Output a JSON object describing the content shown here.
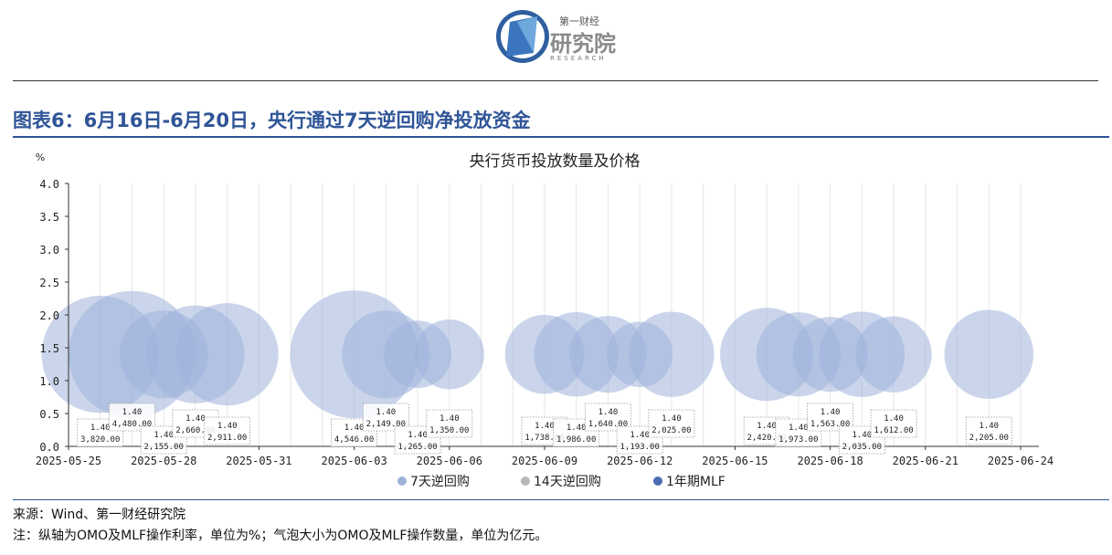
{
  "brand": {
    "cn_small": "第一财经",
    "cn_big": "研究院",
    "en": "RESEARCH"
  },
  "figure_title": "图表6：6月16日-6月20日，央行通过7天逆回购净投放资金",
  "chart_data": {
    "type": "bubble",
    "title": "央行货币投放数量及价格",
    "ylabel": "%",
    "ylim": [
      0,
      4
    ],
    "yticks": [
      "0.0",
      "0.5",
      "1.0",
      "1.5",
      "2.0",
      "2.5",
      "3.0",
      "3.5",
      "4.0"
    ],
    "xlim": [
      "2025-05-25",
      "2025-06-24"
    ],
    "xticks": [
      "2025-05-25",
      "2025-05-28",
      "2025-05-31",
      "2025-06-03",
      "2025-06-06",
      "2025-06-09",
      "2025-06-12",
      "2025-06-15",
      "2025-06-18",
      "2025-06-21",
      "2025-06-24"
    ],
    "grid": "vertical",
    "legend_position": "bottom",
    "series": [
      {
        "name": "7天逆回购",
        "color": "#9fb2da",
        "points": [
          {
            "date": "2025-05-26",
            "rate": 1.4,
            "amount": "3,820.00",
            "amount_num": 3820
          },
          {
            "date": "2025-05-27",
            "rate": 1.4,
            "amount": "4,480.00",
            "amount_num": 4480
          },
          {
            "date": "2025-05-28",
            "rate": 1.4,
            "amount": "2,155.00",
            "amount_num": 2155
          },
          {
            "date": "2025-05-29",
            "rate": 1.4,
            "amount": "2,660.00",
            "amount_num": 2660
          },
          {
            "date": "2025-05-30",
            "rate": 1.4,
            "amount": "2,911.00",
            "amount_num": 2911
          },
          {
            "date": "2025-06-03",
            "rate": 1.4,
            "amount": "4,546.00",
            "amount_num": 4546
          },
          {
            "date": "2025-06-04",
            "rate": 1.4,
            "amount": "2,149.00",
            "amount_num": 2149
          },
          {
            "date": "2025-06-05",
            "rate": 1.4,
            "amount": "1,265.00",
            "amount_num": 1265
          },
          {
            "date": "2025-06-06",
            "rate": 1.4,
            "amount": "1,350.00",
            "amount_num": 1350
          },
          {
            "date": "2025-06-09",
            "rate": 1.4,
            "amount": "1,738.00",
            "amount_num": 1738
          },
          {
            "date": "2025-06-10",
            "rate": 1.4,
            "amount": "1,986.00",
            "amount_num": 1986
          },
          {
            "date": "2025-06-11",
            "rate": 1.4,
            "amount": "1,640.00",
            "amount_num": 1640
          },
          {
            "date": "2025-06-12",
            "rate": 1.4,
            "amount": "1,193.00",
            "amount_num": 1193
          },
          {
            "date": "2025-06-13",
            "rate": 1.4,
            "amount": "2,025.00",
            "amount_num": 2025
          },
          {
            "date": "2025-06-16",
            "rate": 1.4,
            "amount": "2,420.00",
            "amount_num": 2420
          },
          {
            "date": "2025-06-17",
            "rate": 1.4,
            "amount": "1,973.00",
            "amount_num": 1973
          },
          {
            "date": "2025-06-18",
            "rate": 1.4,
            "amount": "1,563.00",
            "amount_num": 1563
          },
          {
            "date": "2025-06-19",
            "rate": 1.4,
            "amount": "2,035.00",
            "amount_num": 2035
          },
          {
            "date": "2025-06-20",
            "rate": 1.4,
            "amount": "1,612.00",
            "amount_num": 1612
          },
          {
            "date": "2025-06-23",
            "rate": 1.4,
            "amount": "2,205.00",
            "amount_num": 2205
          }
        ]
      },
      {
        "name": "14天逆回购",
        "color": "#b8b8b8",
        "points": []
      },
      {
        "name": "1年期MLF",
        "color": "#4a6cb3",
        "points": []
      }
    ]
  },
  "source": "来源：Wind、第一财经研究院",
  "note": "注：纵轴为OMO及MLF操作利率，单位为%；气泡大小为OMO及MLF操作数量，单位为亿元。"
}
